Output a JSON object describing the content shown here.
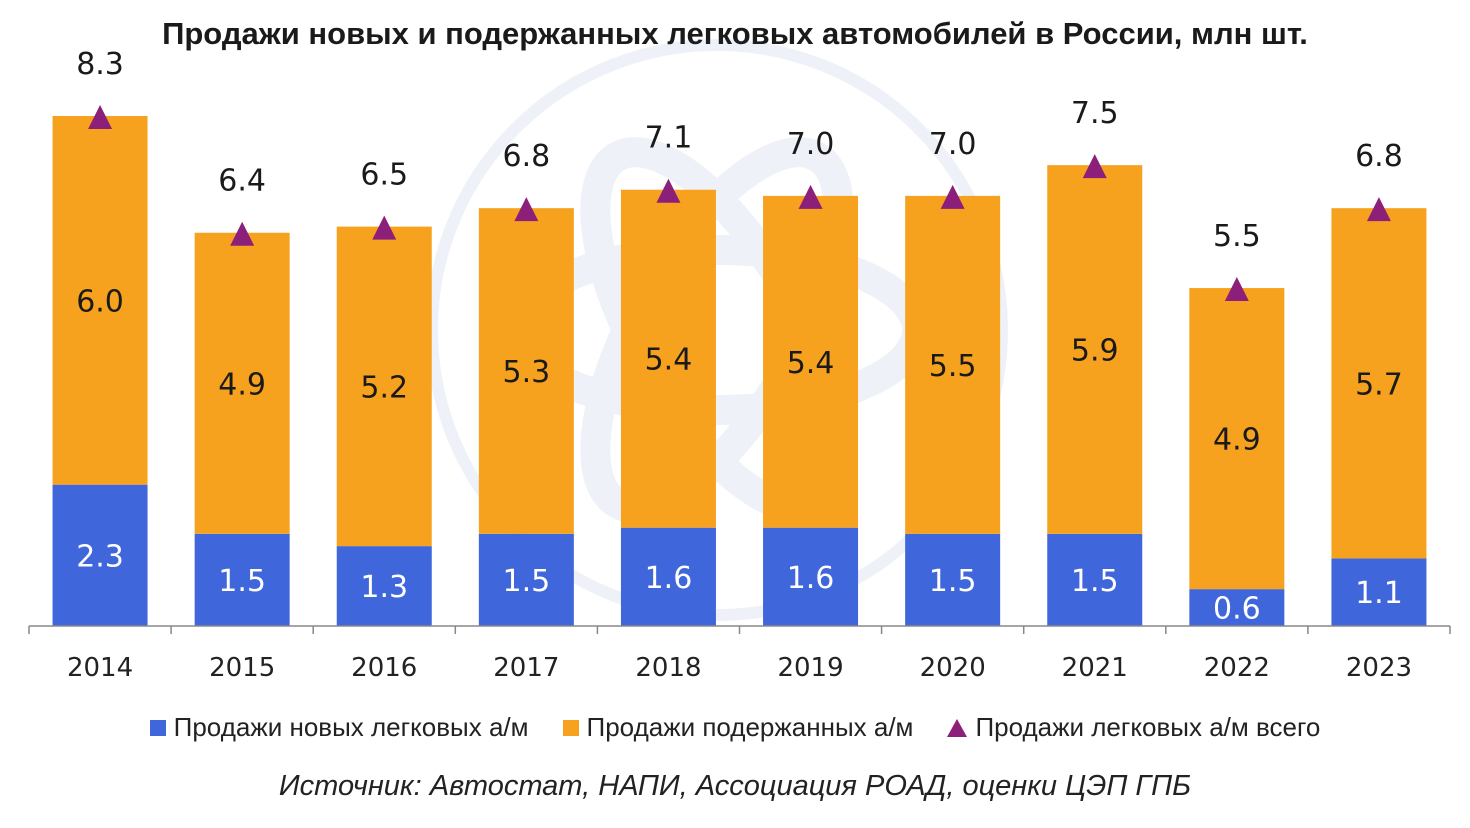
{
  "chart_data": {
    "type": "bar",
    "title": "Продажи новых и подержанных легковых автомобилей в России, млн шт.",
    "categories": [
      "2014",
      "2015",
      "2016",
      "2017",
      "2018",
      "2019",
      "2020",
      "2021",
      "2022",
      "2023"
    ],
    "series": [
      {
        "name": "Продажи новых легковых а/м",
        "kind": "bar",
        "values": [
          2.3,
          1.5,
          1.3,
          1.5,
          1.6,
          1.6,
          1.5,
          1.5,
          0.6,
          1.1
        ],
        "color": "#3f66db"
      },
      {
        "name": "Продажи подержанных а/м",
        "kind": "bar",
        "values": [
          6.0,
          4.9,
          5.2,
          5.3,
          5.4,
          5.4,
          5.5,
          5.9,
          4.9,
          5.7
        ],
        "color": "#f7a21e"
      },
      {
        "name": "Продажи легковых а/м всего",
        "kind": "marker",
        "values": [
          8.3,
          6.4,
          6.5,
          6.8,
          7.1,
          7.0,
          7.0,
          7.5,
          5.5,
          6.8
        ],
        "color": "#8b1f7a"
      }
    ],
    "ylim": [
      0,
      9
    ],
    "stacked": true,
    "legend": "bottom"
  },
  "source": "Источник: Автостат, НАПИ, Ассоциация РОАД, оценки ЦЭП ГПБ"
}
